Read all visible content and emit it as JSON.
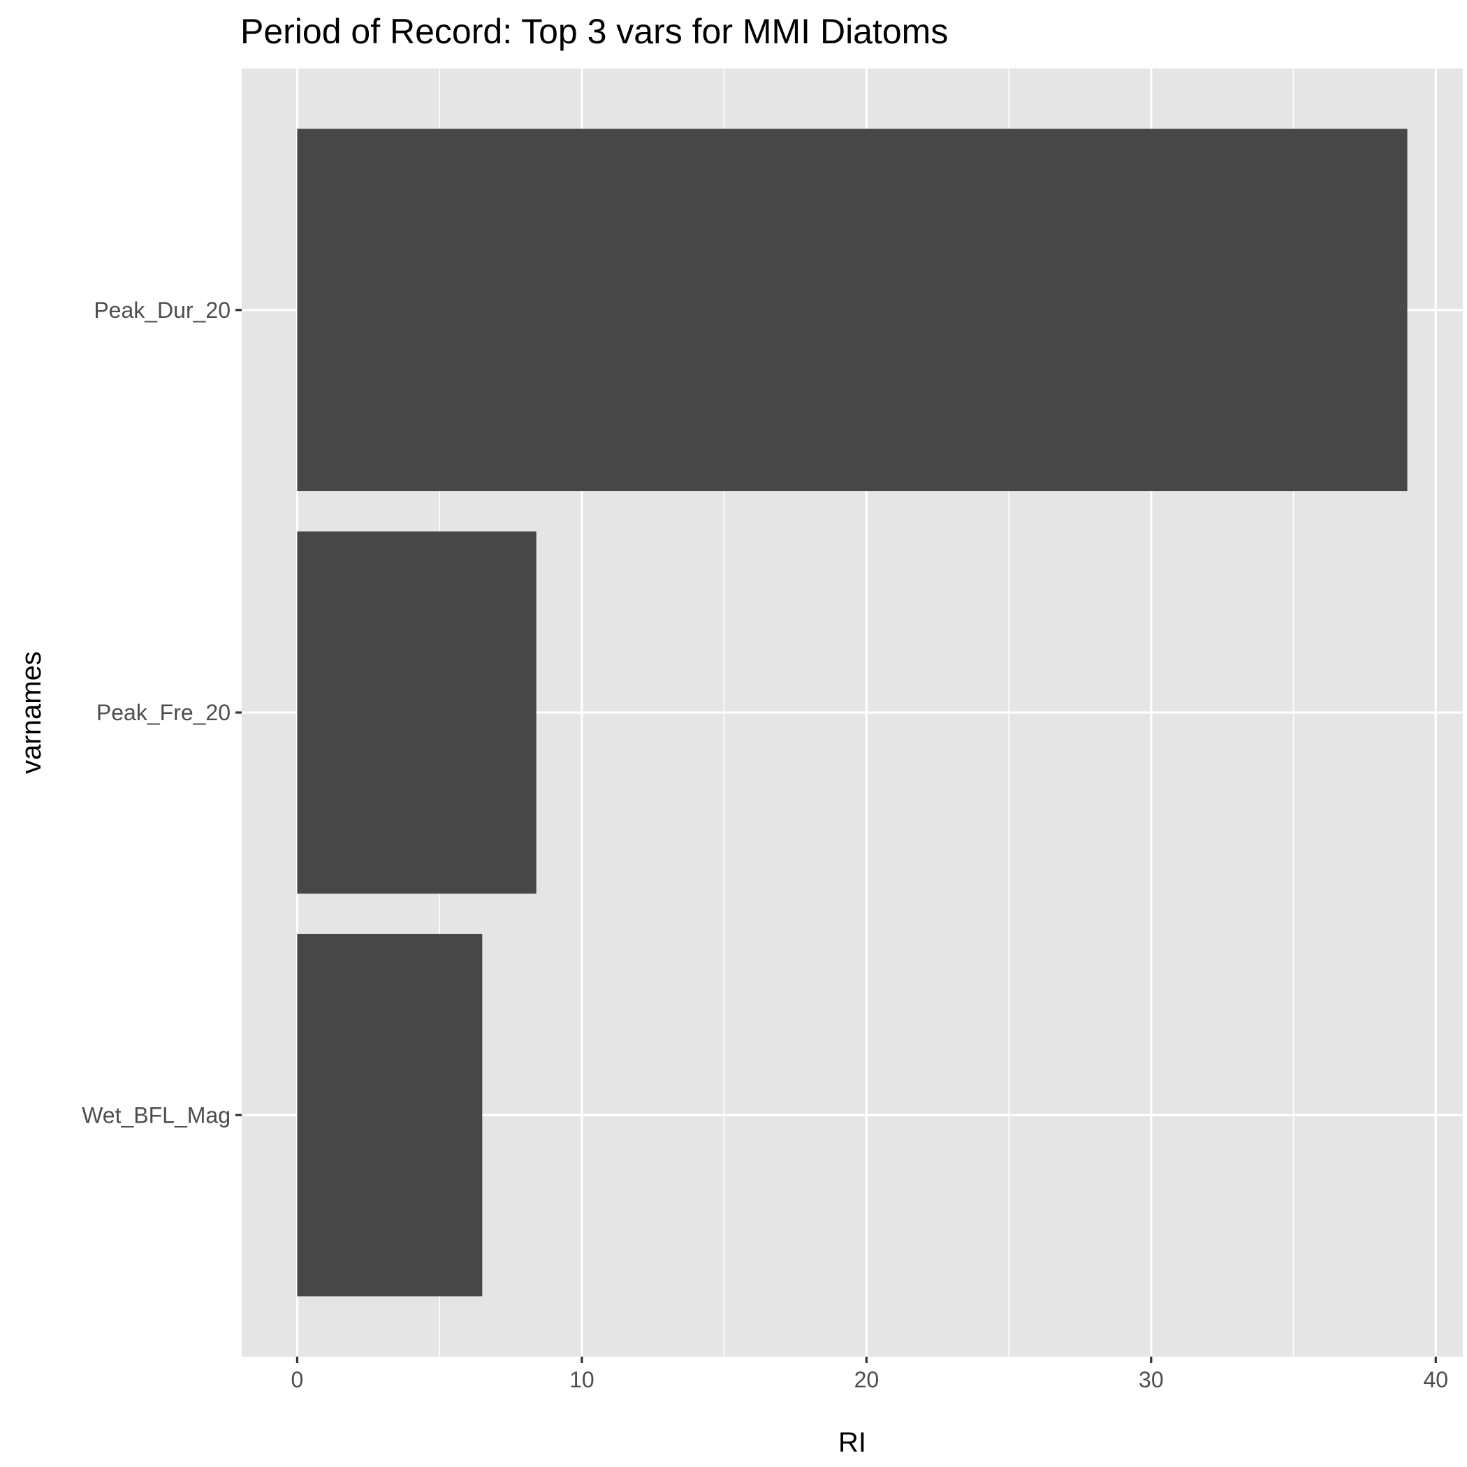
{
  "chart_data": {
    "type": "bar",
    "orientation": "horizontal",
    "title": "Period of Record: Top 3 vars for MMI Diatoms",
    "xlabel": "RI",
    "ylabel": "varnames",
    "categories": [
      "Peak_Dur_20",
      "Peak_Fre_20",
      "Wet_BFL_Mag"
    ],
    "values": [
      39.0,
      8.4,
      6.5
    ],
    "xlim": [
      -1.95,
      40.95
    ],
    "x_ticks": [
      0,
      10,
      20,
      30,
      40
    ],
    "x_tick_labels": [
      "0",
      "10",
      "20",
      "30",
      "40"
    ],
    "x_minor_ticks": [
      5,
      15,
      25,
      35
    ],
    "grid": true,
    "legend": "none",
    "colors": {
      "bar": "#474747",
      "panel_background": "#e5e5e5",
      "grid": "#ffffff",
      "tick_label": "#4d4d4d",
      "tick_mark": "#333333",
      "text": "#000000"
    }
  }
}
